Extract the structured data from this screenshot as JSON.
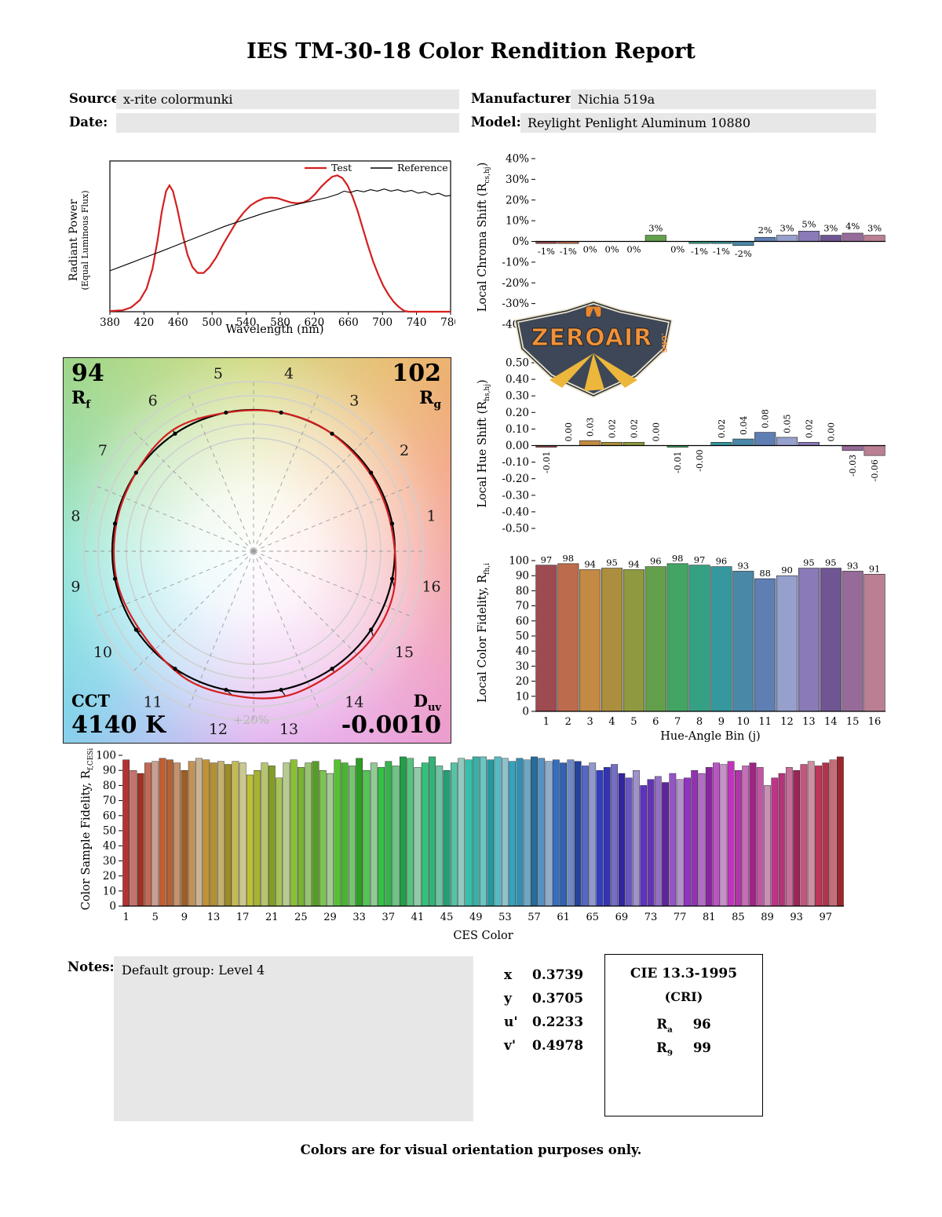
{
  "title": "IES TM-30-18 Color Rendition Report",
  "header": {
    "source": {
      "label": "Source:",
      "value": "x-rite colormunki"
    },
    "date": {
      "label": "Date:",
      "value": ""
    },
    "manufacturer": {
      "label": "Manufacturer:",
      "value": "Nichia 519a"
    },
    "model": {
      "label": "Model:",
      "value": "Reylight Penlight Aluminum 10880"
    }
  },
  "watermark": {
    "name": "ZEROAIR",
    "org": ".ORG"
  },
  "cvg": {
    "rf_value": "94",
    "rf_label_main": "R",
    "rf_label_sub": "f",
    "rg_value": "102",
    "rg_label_main": "R",
    "rg_label_sub": "g",
    "cct_label": "CCT",
    "cct_value": "4140 K",
    "duv_label_main": "D",
    "duv_label_sub": "uv",
    "duv_value": "-0.0010",
    "ring_label": "+20%",
    "bin_numbers": [
      1,
      2,
      3,
      4,
      5,
      6,
      7,
      8,
      9,
      10,
      11,
      12,
      13,
      14,
      15,
      16
    ]
  },
  "notes": {
    "label": "Notes:",
    "text": "Default group: Level 4"
  },
  "chromaticity": {
    "rows": [
      {
        "label": "x",
        "value": "0.3739"
      },
      {
        "label": "y",
        "value": "0.3705"
      },
      {
        "label": "u'",
        "value": "0.2233"
      },
      {
        "label": "v'",
        "value": "0.4978"
      }
    ]
  },
  "cri_box": {
    "title": "CIE 13.3-1995",
    "subtitle": "(CRI)",
    "rows": [
      {
        "label_main": "R",
        "label_sub": "a",
        "value": "96"
      },
      {
        "label_main": "R",
        "label_sub": "9",
        "value": "99"
      }
    ]
  },
  "footer": "Colors are for visual orientation purposes only.",
  "hue_bin_colors": [
    "#9e4a51",
    "#bc6c4c",
    "#c28a44",
    "#ac8f3e",
    "#8f9a40",
    "#64a04c",
    "#43a563",
    "#35a184",
    "#35989e",
    "#4a88a8",
    "#5f7eb4",
    "#96a0cc",
    "#8a7ab8",
    "#6f5693",
    "#966b99",
    "#bb7f93"
  ],
  "chart_data": [
    {
      "id": "spd",
      "type": "line",
      "xlabel": "Wavelength (nm)",
      "ylabel1": "Radiant Power",
      "ylabel2": "(Equal Luminous Flux)",
      "xlim": [
        380,
        780
      ],
      "xticks": [
        380,
        420,
        460,
        500,
        540,
        580,
        620,
        660,
        700,
        740,
        780
      ],
      "series": [
        {
          "name": "Test",
          "color": "#d42020",
          "width": 2.2,
          "points": [
            [
              380,
              0.005
            ],
            [
              395,
              0.01
            ],
            [
              405,
              0.03
            ],
            [
              415,
              0.08
            ],
            [
              423,
              0.16
            ],
            [
              430,
              0.3
            ],
            [
              436,
              0.5
            ],
            [
              441,
              0.7
            ],
            [
              446,
              0.84
            ],
            [
              450,
              0.88
            ],
            [
              454,
              0.84
            ],
            [
              459,
              0.72
            ],
            [
              465,
              0.55
            ],
            [
              471,
              0.4
            ],
            [
              477,
              0.31
            ],
            [
              483,
              0.27
            ],
            [
              490,
              0.27
            ],
            [
              497,
              0.31
            ],
            [
              505,
              0.38
            ],
            [
              513,
              0.47
            ],
            [
              521,
              0.55
            ],
            [
              529,
              0.63
            ],
            [
              537,
              0.69
            ],
            [
              545,
              0.74
            ],
            [
              553,
              0.77
            ],
            [
              561,
              0.79
            ],
            [
              569,
              0.795
            ],
            [
              577,
              0.79
            ],
            [
              585,
              0.775
            ],
            [
              593,
              0.76
            ],
            [
              600,
              0.755
            ],
            [
              607,
              0.76
            ],
            [
              614,
              0.78
            ],
            [
              621,
              0.82
            ],
            [
              628,
              0.87
            ],
            [
              635,
              0.91
            ],
            [
              641,
              0.94
            ],
            [
              647,
              0.95
            ],
            [
              653,
              0.93
            ],
            [
              659,
              0.88
            ],
            [
              665,
              0.8
            ],
            [
              671,
              0.7
            ],
            [
              677,
              0.58
            ],
            [
              683,
              0.46
            ],
            [
              689,
              0.35
            ],
            [
              695,
              0.26
            ],
            [
              701,
              0.18
            ],
            [
              707,
              0.12
            ],
            [
              713,
              0.07
            ],
            [
              718,
              0.04
            ],
            [
              722,
              0.02
            ],
            [
              726,
              0.005
            ],
            [
              731,
              0
            ],
            [
              780,
              0
            ]
          ]
        },
        {
          "name": "Reference",
          "color": "#000000",
          "width": 1.1,
          "points": [
            [
              380,
              0.285
            ],
            [
              400,
              0.33
            ],
            [
              420,
              0.375
            ],
            [
              440,
              0.42
            ],
            [
              455,
              0.455
            ],
            [
              470,
              0.49
            ],
            [
              485,
              0.525
            ],
            [
              500,
              0.56
            ],
            [
              515,
              0.595
            ],
            [
              530,
              0.625
            ],
            [
              545,
              0.655
            ],
            [
              560,
              0.685
            ],
            [
              575,
              0.71
            ],
            [
              590,
              0.735
            ],
            [
              605,
              0.755
            ],
            [
              620,
              0.775
            ],
            [
              635,
              0.795
            ],
            [
              648,
              0.82
            ],
            [
              655,
              0.84
            ],
            [
              662,
              0.83
            ],
            [
              670,
              0.845
            ],
            [
              678,
              0.835
            ],
            [
              686,
              0.85
            ],
            [
              694,
              0.84
            ],
            [
              702,
              0.855
            ],
            [
              710,
              0.84
            ],
            [
              718,
              0.85
            ],
            [
              726,
              0.835
            ],
            [
              734,
              0.845
            ],
            [
              742,
              0.825
            ],
            [
              750,
              0.835
            ],
            [
              758,
              0.815
            ],
            [
              766,
              0.825
            ],
            [
              774,
              0.805
            ],
            [
              780,
              0.81
            ]
          ]
        }
      ]
    },
    {
      "id": "chroma_shift",
      "type": "bar",
      "ylabel_pre": "Local Chroma Shift (R",
      "ylabel_sub": "cs,hj",
      "ylabel_post": ")",
      "ylim": [
        -40,
        40
      ],
      "ytick_values": [
        40,
        30,
        20,
        10,
        0,
        -10,
        -20,
        -30,
        -40
      ],
      "ytick_labels": [
        "40%",
        "30%",
        "20%",
        "10%",
        "0%",
        "-10%",
        "-20%",
        "-30%",
        "-40%"
      ],
      "categories": [
        1,
        2,
        3,
        4,
        5,
        6,
        7,
        8,
        9,
        10,
        11,
        12,
        13,
        14,
        15,
        16
      ],
      "values": [
        -1,
        -1,
        0,
        0,
        0,
        3,
        0,
        -1,
        -1,
        -2,
        2,
        3,
        5,
        3,
        4,
        3
      ],
      "labels": [
        "-1%",
        "-1%",
        "0%",
        "0%",
        "0%",
        "3%",
        "0%",
        "-1%",
        "-1%",
        "-2%",
        "2%",
        "3%",
        "5%",
        "3%",
        "4%",
        "3%"
      ]
    },
    {
      "id": "hue_shift",
      "type": "bar",
      "ylabel_pre": "Local Hue Shift (R",
      "ylabel_sub": "hs,hj",
      "ylabel_post": ")",
      "ylim": [
        -0.5,
        0.5
      ],
      "ytick_values": [
        0.5,
        0.4,
        0.3,
        0.2,
        0.1,
        0,
        -0.1,
        -0.2,
        -0.3,
        -0.4,
        -0.5
      ],
      "ytick_labels": [
        "0.50",
        "0.40",
        "0.30",
        "0.20",
        "0.10",
        "0.00",
        "-0.10",
        "-0.20",
        "-0.30",
        "-0.40",
        "-0.50"
      ],
      "categories": [
        1,
        2,
        3,
        4,
        5,
        6,
        7,
        8,
        9,
        10,
        11,
        12,
        13,
        14,
        15,
        16
      ],
      "values": [
        -0.01,
        0,
        0.03,
        0.02,
        0.02,
        0,
        -0.01,
        0,
        0.02,
        0.04,
        0.08,
        0.05,
        0.02,
        0,
        -0.03,
        -0.06
      ],
      "labels": [
        "-0.01",
        "0.00",
        "0.03",
        "0.02",
        "0.02",
        "0.00",
        "-0.01",
        "-0.00",
        "0.02",
        "0.04",
        "0.08",
        "0.05",
        "0.02",
        "0.00",
        "-0.03",
        "-0.06"
      ]
    },
    {
      "id": "local_fidelity",
      "type": "bar",
      "ylabel_pre": "Local Color Fidelity, R",
      "ylabel_sub": "fh,i",
      "ylabel_post": "",
      "xlabel": "Hue-Angle Bin (j)",
      "ylim": [
        0,
        100
      ],
      "ytick_values": [
        100,
        90,
        80,
        70,
        60,
        50,
        40,
        30,
        20,
        10,
        0
      ],
      "categories": [
        1,
        2,
        3,
        4,
        5,
        6,
        7,
        8,
        9,
        10,
        11,
        12,
        13,
        14,
        15,
        16
      ],
      "values": [
        97,
        98,
        94,
        95,
        94,
        96,
        98,
        97,
        96,
        93,
        88,
        90,
        95,
        95,
        93,
        91
      ]
    },
    {
      "id": "ces",
      "type": "bar",
      "ylabel_pre": "Color Sample Fidelity, R",
      "ylabel_sub": "f,CESi",
      "ylabel_post": "",
      "xlabel": "CES Color",
      "ylim": [
        0,
        100
      ],
      "ytick_values": [
        100,
        90,
        80,
        70,
        60,
        50,
        40,
        30,
        20,
        10,
        0
      ],
      "xticks": [
        1,
        5,
        9,
        13,
        17,
        21,
        25,
        29,
        33,
        37,
        41,
        45,
        49,
        53,
        57,
        61,
        65,
        69,
        73,
        77,
        81,
        85,
        89,
        93,
        97
      ],
      "values": [
        97,
        90,
        88,
        95,
        96,
        98,
        97,
        95,
        90,
        96,
        98,
        97,
        95,
        96,
        94,
        96,
        95,
        87,
        90,
        95,
        93,
        85,
        95,
        97,
        92,
        95,
        96,
        90,
        88,
        97,
        95,
        93,
        98,
        90,
        95,
        92,
        96,
        93,
        99,
        98,
        92,
        95,
        99,
        93,
        90,
        95,
        98,
        97,
        99,
        99,
        97,
        99,
        98,
        96,
        98,
        97,
        99,
        98,
        96,
        97,
        95,
        97,
        96,
        93,
        95,
        90,
        92,
        94,
        88,
        85,
        90,
        80,
        84,
        86,
        82,
        88,
        84,
        85,
        90,
        88,
        92,
        95,
        94,
        96,
        90,
        93,
        95,
        92,
        80,
        85,
        88,
        92,
        90,
        94,
        96,
        93,
        95,
        97,
        99
      ],
      "colors": [
        "hsl(0,55%,45%)",
        "hsl(4,42%,60%)",
        "hsl(7,62%,38%)",
        "hsl(11,48%,55%)",
        "hsl(15,35%,68%)",
        "hsl(18,58%,48%)",
        "hsl(22,55%,45%)",
        "hsl(25,42%,60%)",
        "hsl(29,62%,38%)",
        "hsl(33,48%,55%)",
        "hsl(36,35%,68%)",
        "hsl(40,58%,48%)",
        "hsl(44,55%,45%)",
        "hsl(47,42%,60%)",
        "hsl(51,62%,38%)",
        "hsl(55,48%,55%)",
        "hsl(58,35%,68%)",
        "hsl(62,58%,48%)",
        "hsl(65,55%,45%)",
        "hsl(69,42%,60%)",
        "hsl(73,62%,38%)",
        "hsl(76,48%,55%)",
        "hsl(80,35%,68%)",
        "hsl(84,58%,48%)",
        "hsl(87,55%,45%)",
        "hsl(91,42%,60%)",
        "hsl(95,62%,38%)",
        "hsl(98,48%,55%)",
        "hsl(102,35%,68%)",
        "hsl(105,58%,48%)",
        "hsl(109,55%,45%)",
        "hsl(113,42%,60%)",
        "hsl(116,62%,38%)",
        "hsl(120,48%,55%)",
        "hsl(124,35%,68%)",
        "hsl(127,58%,48%)",
        "hsl(131,55%,45%)",
        "hsl(135,42%,60%)",
        "hsl(138,62%,38%)",
        "hsl(142,48%,55%)",
        "hsl(145,35%,68%)",
        "hsl(149,58%,48%)",
        "hsl(153,55%,45%)",
        "hsl(156,42%,60%)",
        "hsl(160,62%,38%)",
        "hsl(164,48%,55%)",
        "hsl(167,35%,68%)",
        "hsl(171,58%,48%)",
        "hsl(175,55%,45%)",
        "hsl(178,42%,60%)",
        "hsl(182,62%,38%)",
        "hsl(185,48%,55%)",
        "hsl(189,35%,68%)",
        "hsl(193,58%,48%)",
        "hsl(196,55%,45%)",
        "hsl(200,42%,60%)",
        "hsl(204,62%,38%)",
        "hsl(207,48%,55%)",
        "hsl(211,35%,68%)",
        "hsl(215,58%,48%)",
        "hsl(218,55%,45%)",
        "hsl(222,42%,60%)",
        "hsl(225,62%,38%)",
        "hsl(229,48%,55%)",
        "hsl(233,35%,68%)",
        "hsl(236,58%,48%)",
        "hsl(240,55%,45%)",
        "hsl(244,42%,60%)",
        "hsl(247,62%,38%)",
        "hsl(251,48%,55%)",
        "hsl(255,35%,68%)",
        "hsl(258,58%,48%)",
        "hsl(262,55%,45%)",
        "hsl(265,42%,60%)",
        "hsl(269,62%,38%)",
        "hsl(273,48%,55%)",
        "hsl(276,35%,68%)",
        "hsl(280,58%,48%)",
        "hsl(284,55%,45%)",
        "hsl(287,42%,60%)",
        "hsl(291,62%,38%)",
        "hsl(295,48%,55%)",
        "hsl(298,35%,68%)",
        "hsl(302,58%,48%)",
        "hsl(305,55%,45%)",
        "hsl(309,42%,60%)",
        "hsl(313,62%,38%)",
        "hsl(316,48%,55%)",
        "hsl(320,35%,68%)",
        "hsl(324,58%,48%)",
        "hsl(327,55%,45%)",
        "hsl(331,42%,60%)",
        "hsl(335,62%,38%)",
        "hsl(338,48%,55%)",
        "hsl(342,35%,68%)",
        "hsl(345,58%,48%)",
        "hsl(349,55%,45%)",
        "hsl(353,42%,60%)",
        "hsl(356,62%,38%)"
      ]
    }
  ]
}
